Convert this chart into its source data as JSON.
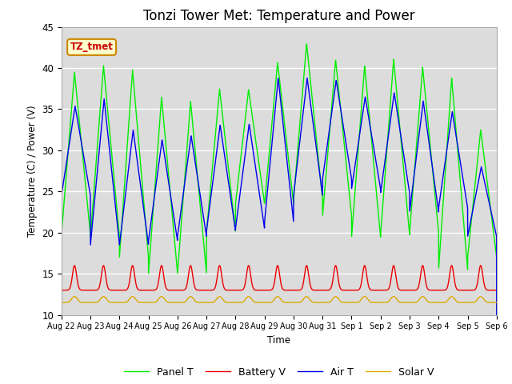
{
  "title": "Tonzi Tower Met: Temperature and Power",
  "xlabel": "Time",
  "ylabel": "Temperature (C) / Power (V)",
  "ylim": [
    10,
    45
  ],
  "xlim": [
    0,
    15
  ],
  "annotation": "TZ_tmet",
  "background_color": "#dcdcdc",
  "legend_labels": [
    "Panel T",
    "Battery V",
    "Air T",
    "Solar V"
  ],
  "legend_colors": [
    "#00ee00",
    "#ee0000",
    "#0000ee",
    "#ddaa00"
  ],
  "x_tick_labels": [
    "Aug 22",
    "Aug 23",
    "Aug 24",
    "Aug 25",
    "Aug 26",
    "Aug 27",
    "Aug 28",
    "Aug 29",
    "Aug 30",
    "Aug 31",
    "Sep 1",
    "Sep 2",
    "Sep 3",
    "Sep 4",
    "Sep 5",
    "Sep 6"
  ],
  "n_days": 15,
  "title_fontsize": 12
}
